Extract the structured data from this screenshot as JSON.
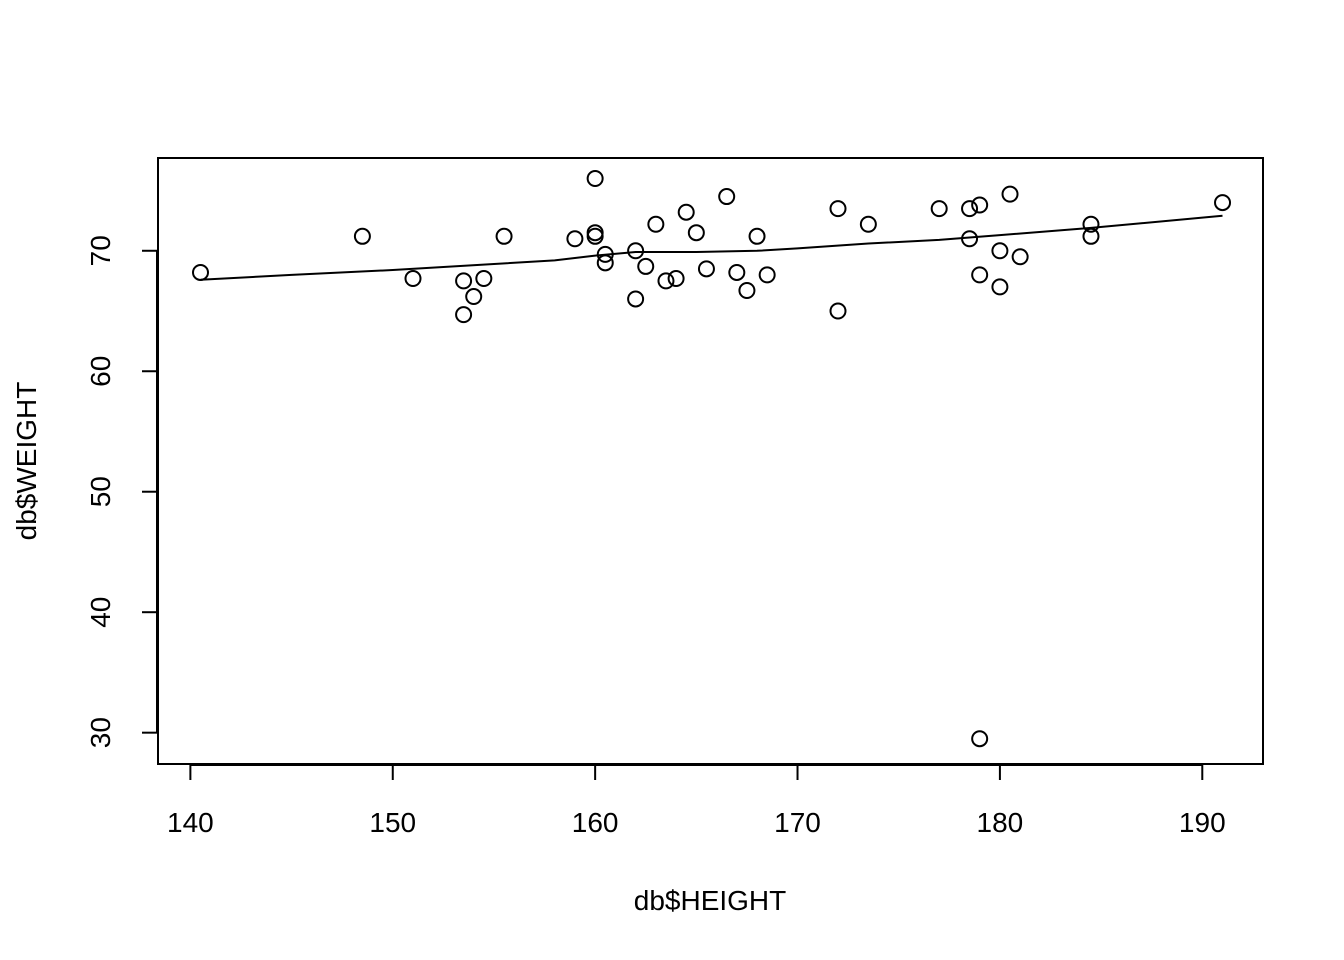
{
  "chart_data": {
    "type": "scatter",
    "title": "",
    "xlabel": "db$HEIGHT",
    "ylabel": "db$WEIGHT",
    "xlim": [
      138.4,
      193.0
    ],
    "ylim": [
      27.4,
      77.7
    ],
    "xticks": [
      140,
      150,
      160,
      170,
      180,
      190
    ],
    "yticks": [
      30,
      40,
      50,
      60,
      70
    ],
    "grid": false,
    "points": [
      [
        140.5,
        68.2
      ],
      [
        148.5,
        71.2
      ],
      [
        151.0,
        67.7
      ],
      [
        153.5,
        67.5
      ],
      [
        153.5,
        64.7
      ],
      [
        154.0,
        66.2
      ],
      [
        154.5,
        67.7
      ],
      [
        155.5,
        71.2
      ],
      [
        159.0,
        71.0
      ],
      [
        160.0,
        76.0
      ],
      [
        160.0,
        71.5
      ],
      [
        160.0,
        71.2
      ],
      [
        160.5,
        69.7
      ],
      [
        160.5,
        69.0
      ],
      [
        162.0,
        70.0
      ],
      [
        162.0,
        66.0
      ],
      [
        162.5,
        68.7
      ],
      [
        163.0,
        72.2
      ],
      [
        163.5,
        67.5
      ],
      [
        164.0,
        67.7
      ],
      [
        164.5,
        73.2
      ],
      [
        165.0,
        71.5
      ],
      [
        165.5,
        68.5
      ],
      [
        166.5,
        74.5
      ],
      [
        167.0,
        68.2
      ],
      [
        167.5,
        66.7
      ],
      [
        168.0,
        71.2
      ],
      [
        168.5,
        68.0
      ],
      [
        172.0,
        73.5
      ],
      [
        172.0,
        65.0
      ],
      [
        173.5,
        72.2
      ],
      [
        177.0,
        73.5
      ],
      [
        178.5,
        73.5
      ],
      [
        178.5,
        71.0
      ],
      [
        179.0,
        73.8
      ],
      [
        179.0,
        68.0
      ],
      [
        179.0,
        29.5
      ],
      [
        180.0,
        70.0
      ],
      [
        180.0,
        67.0
      ],
      [
        180.5,
        74.7
      ],
      [
        181.0,
        69.5
      ],
      [
        184.5,
        72.2
      ],
      [
        184.5,
        71.2
      ],
      [
        191.0,
        74.0
      ]
    ],
    "smooth_line": [
      [
        140.5,
        67.6
      ],
      [
        145.0,
        68.0
      ],
      [
        150.0,
        68.4
      ],
      [
        155.0,
        68.9
      ],
      [
        158.0,
        69.2
      ],
      [
        160.0,
        69.6
      ],
      [
        162.0,
        69.9
      ],
      [
        165.0,
        69.9
      ],
      [
        168.0,
        70.0
      ],
      [
        170.0,
        70.2
      ],
      [
        173.5,
        70.6
      ],
      [
        177.0,
        70.9
      ],
      [
        180.0,
        71.3
      ],
      [
        184.5,
        71.9
      ],
      [
        191.0,
        72.9
      ]
    ]
  }
}
